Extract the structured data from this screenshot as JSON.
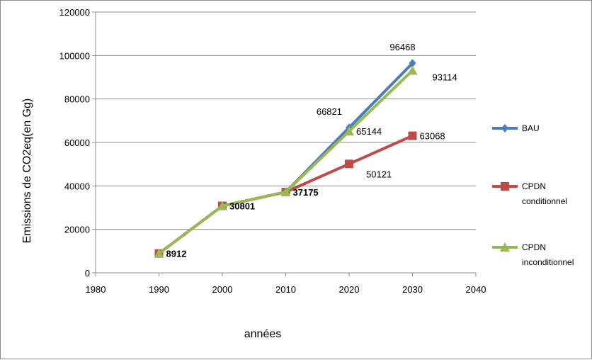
{
  "chart_data": {
    "type": "line",
    "title": "",
    "xlabel": "années",
    "ylabel": "Emissions de CO2eq(en Gg)",
    "xlim": [
      1980,
      2040
    ],
    "ylim": [
      0,
      120000
    ],
    "x_ticks": [
      1980,
      1990,
      2000,
      2010,
      2020,
      2030,
      2040
    ],
    "y_ticks": [
      0,
      20000,
      40000,
      60000,
      80000,
      100000,
      120000
    ],
    "grid": "horizontal",
    "legend_position": "right",
    "series": [
      {
        "name": "BAU",
        "lines": [
          "BAU"
        ],
        "color": "#4a7ebb",
        "marker": "diamond",
        "x": [
          1990,
          2000,
          2010,
          2020,
          2030
        ],
        "values": [
          8912,
          30801,
          37175,
          66821,
          96468
        ]
      },
      {
        "name": "CPDN conditionnel",
        "lines": [
          "CPDN",
          "conditionnel"
        ],
        "color": "#be4b48",
        "marker": "square",
        "x": [
          1990,
          2000,
          2010,
          2020,
          2030
        ],
        "values": [
          8912,
          30801,
          37175,
          50121,
          63068
        ]
      },
      {
        "name": "CPDN inconditionnel",
        "lines": [
          "CPDN",
          "inconditionnel"
        ],
        "color": "#98b954",
        "marker": "triangle",
        "x": [
          1990,
          2000,
          2010,
          2020,
          2030
        ],
        "values": [
          8912,
          30801,
          37175,
          65144,
          93114
        ]
      }
    ],
    "data_labels": [
      {
        "x": 1990,
        "y": 8912,
        "text": "8912",
        "bold": true,
        "anchor": "right"
      },
      {
        "x": 2000,
        "y": 30801,
        "text": "30801",
        "bold": true,
        "anchor": "right"
      },
      {
        "x": 2010,
        "y": 37175,
        "text": "37175",
        "bold": true,
        "anchor": "right"
      },
      {
        "x": 2020,
        "y": 66821,
        "text": "66821",
        "bold": false,
        "anchor": "above-left"
      },
      {
        "x": 2020,
        "y": 65144,
        "text": "65144",
        "bold": false,
        "anchor": "right"
      },
      {
        "x": 2020,
        "y": 50121,
        "text": "50121",
        "bold": false,
        "anchor": "below-right"
      },
      {
        "x": 2030,
        "y": 96468,
        "text": "96468",
        "bold": false,
        "anchor": "above"
      },
      {
        "x": 2030,
        "y": 93114,
        "text": "93114",
        "bold": false,
        "anchor": "far-right"
      },
      {
        "x": 2030,
        "y": 63068,
        "text": "63068",
        "bold": false,
        "anchor": "right"
      }
    ]
  }
}
